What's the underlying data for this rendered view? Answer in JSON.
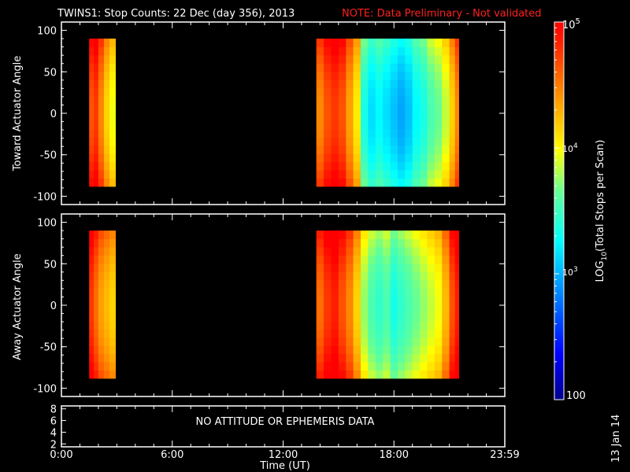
{
  "title": "TWINS1: Stop Counts: 22 Dec (day 356), 2013",
  "note": "NOTE: Data Preliminary - Not validated",
  "colors": {
    "background": "#000000",
    "axes": "#ffffff",
    "note": "#ff2020"
  },
  "footer_date": "13 Jan 14",
  "chart_data": [
    {
      "type": "heatmap",
      "panel": "toward",
      "ylabel": "Toward Actuator Angle",
      "ylim": [
        -110,
        110
      ],
      "yticks": [
        "100",
        "50",
        "0",
        "-50",
        "-100"
      ],
      "y_range": [
        -88,
        90
      ],
      "data_segments": [
        {
          "x_start": "01:30",
          "x_end": "02:55",
          "dominant_log10": [
            4.4,
            5.0
          ]
        },
        {
          "x_start": "13:45",
          "x_end": "21:30",
          "dominant_log10": [
            2.9,
            4.8
          ]
        }
      ],
      "columns": [
        [
          1.5,
          4.7
        ],
        [
          1.75,
          4.8
        ],
        [
          2.0,
          4.5
        ],
        [
          2.3,
          4.2
        ],
        [
          2.6,
          4.0
        ],
        [
          13.8,
          4.5
        ],
        [
          14.2,
          4.7
        ],
        [
          14.6,
          4.8
        ],
        [
          15.0,
          4.7
        ],
        [
          15.4,
          4.4
        ],
        [
          15.8,
          4.1
        ],
        [
          16.2,
          3.4
        ],
        [
          16.6,
          3.2
        ],
        [
          17.0,
          3.3
        ],
        [
          17.4,
          3.2
        ],
        [
          17.8,
          3.1
        ],
        [
          18.2,
          3.0
        ],
        [
          18.6,
          3.1
        ],
        [
          19.0,
          3.3
        ],
        [
          19.4,
          3.4
        ],
        [
          19.8,
          3.6
        ],
        [
          20.2,
          3.7
        ],
        [
          20.6,
          3.9
        ],
        [
          21.0,
          4.2
        ],
        [
          21.3,
          4.5
        ]
      ]
    },
    {
      "type": "heatmap",
      "panel": "away",
      "ylabel": "Away Actuator Angle",
      "ylim": [
        -110,
        110
      ],
      "yticks": [
        "100",
        "50",
        "0",
        "-50",
        "-100"
      ],
      "y_range": [
        -88,
        90
      ],
      "data_segments": [
        {
          "x_start": "01:30",
          "x_end": "02:55",
          "dominant_log10": [
            4.3,
            4.9
          ]
        },
        {
          "x_start": "13:45",
          "x_end": "21:30",
          "dominant_log10": [
            3.2,
            4.9
          ]
        }
      ],
      "columns": [
        [
          1.5,
          4.8
        ],
        [
          1.75,
          4.6
        ],
        [
          2.0,
          4.4
        ],
        [
          2.3,
          4.3
        ],
        [
          2.6,
          4.2
        ],
        [
          13.8,
          4.6
        ],
        [
          14.2,
          4.8
        ],
        [
          14.6,
          4.9
        ],
        [
          15.0,
          4.7
        ],
        [
          15.4,
          4.5
        ],
        [
          15.8,
          4.2
        ],
        [
          16.2,
          3.8
        ],
        [
          16.6,
          3.6
        ],
        [
          17.0,
          3.5
        ],
        [
          17.4,
          3.6
        ],
        [
          17.8,
          3.4
        ],
        [
          18.2,
          3.5
        ],
        [
          18.6,
          3.6
        ],
        [
          19.0,
          3.7
        ],
        [
          19.4,
          3.8
        ],
        [
          19.8,
          3.9
        ],
        [
          20.2,
          4.0
        ],
        [
          20.6,
          4.3
        ],
        [
          21.0,
          4.7
        ],
        [
          21.3,
          4.9
        ]
      ]
    },
    {
      "type": "line",
      "panel": "ephemeris",
      "yticks": [
        "8",
        "6",
        "4",
        "2"
      ],
      "ylim": [
        1.5,
        8.5
      ],
      "message": "NO ATTITUDE OR EPHEMERIS DATA",
      "xlabel": "Time (UT)",
      "xticks": [
        "0:00",
        "6:00",
        "12:00",
        "18:00",
        "23:59"
      ],
      "xlim": [
        "00:00",
        "23:59"
      ]
    }
  ],
  "colorbar": {
    "label": "LOG10(Total Stops per Scan)",
    "label_prefix": "LOG",
    "label_sub": "10",
    "label_suffix": "(Total Stops per Scan)",
    "scale": "log",
    "range": [
      100,
      100000
    ],
    "tick_labels": {
      "top": {
        "base": "10",
        "exp": "5"
      },
      "mid_high": {
        "base": "10",
        "exp": "4"
      },
      "mid_low": {
        "base": "10",
        "exp": "3"
      },
      "bottom": "100"
    }
  }
}
